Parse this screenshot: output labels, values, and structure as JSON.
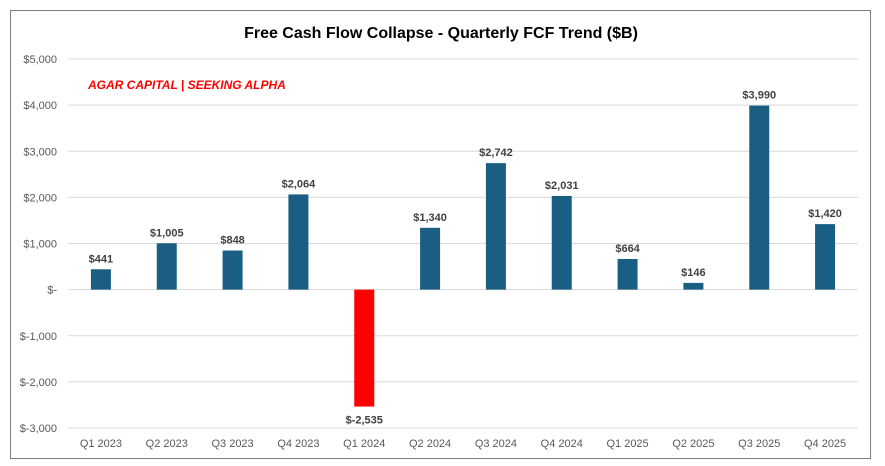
{
  "chart_data": {
    "type": "bar",
    "title": "Free Cash Flow Collapse - Quarterly FCF Trend ($B)",
    "watermark": "AGAR CAPITAL | SEEKING ALPHA",
    "xlabel": "",
    "ylabel": "",
    "ylim": [
      -3000,
      5000
    ],
    "yticks": [
      5000,
      4000,
      3000,
      2000,
      1000,
      0,
      -1000,
      -2000,
      -3000
    ],
    "ytick_labels": [
      "$5,000",
      "$4,000",
      "$3,000",
      "$2,000",
      "$1,000",
      "$-",
      "$-1,000",
      "$-2,000",
      "$-3,000"
    ],
    "grid": true,
    "categories": [
      "Q1 2023",
      "Q2 2023",
      "Q3 2023",
      "Q4 2023",
      "Q1 2024",
      "Q2 2024",
      "Q3 2024",
      "Q4 2024",
      "Q1 2025",
      "Q2 2025",
      "Q3 2025",
      "Q4 2025"
    ],
    "values": [
      441,
      1005,
      848,
      2064,
      -2535,
      1340,
      2742,
      2031,
      664,
      146,
      3990,
      1420
    ],
    "data_labels": [
      "$441",
      "$1,005",
      "$848",
      "$2,064",
      "$-2,535",
      "$1,340",
      "$2,742",
      "$2,031",
      "$664",
      "$146",
      "$3,990",
      "$1,420"
    ],
    "colors": {
      "positive": "#1a5e83",
      "negative": "#ff0000",
      "watermark": "#ff0000",
      "grid": "#d9d9d9",
      "frame": "#7f7f7f"
    }
  }
}
